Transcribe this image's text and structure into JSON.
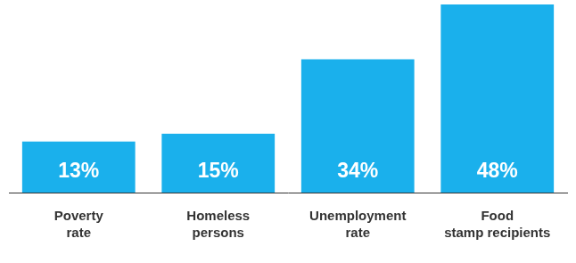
{
  "chart_data": {
    "type": "bar",
    "categories": [
      "Poverty rate",
      "Homeless persons",
      "Unemployment rate",
      "Food stamp recipients"
    ],
    "values": [
      13,
      15,
      34,
      48
    ],
    "value_labels": [
      "13%",
      "15%",
      "34%",
      "48%"
    ],
    "color": "#1ab0ec",
    "ylim": [
      0,
      48
    ],
    "grid": false,
    "data_labels": true,
    "tick_labels": "x"
  }
}
